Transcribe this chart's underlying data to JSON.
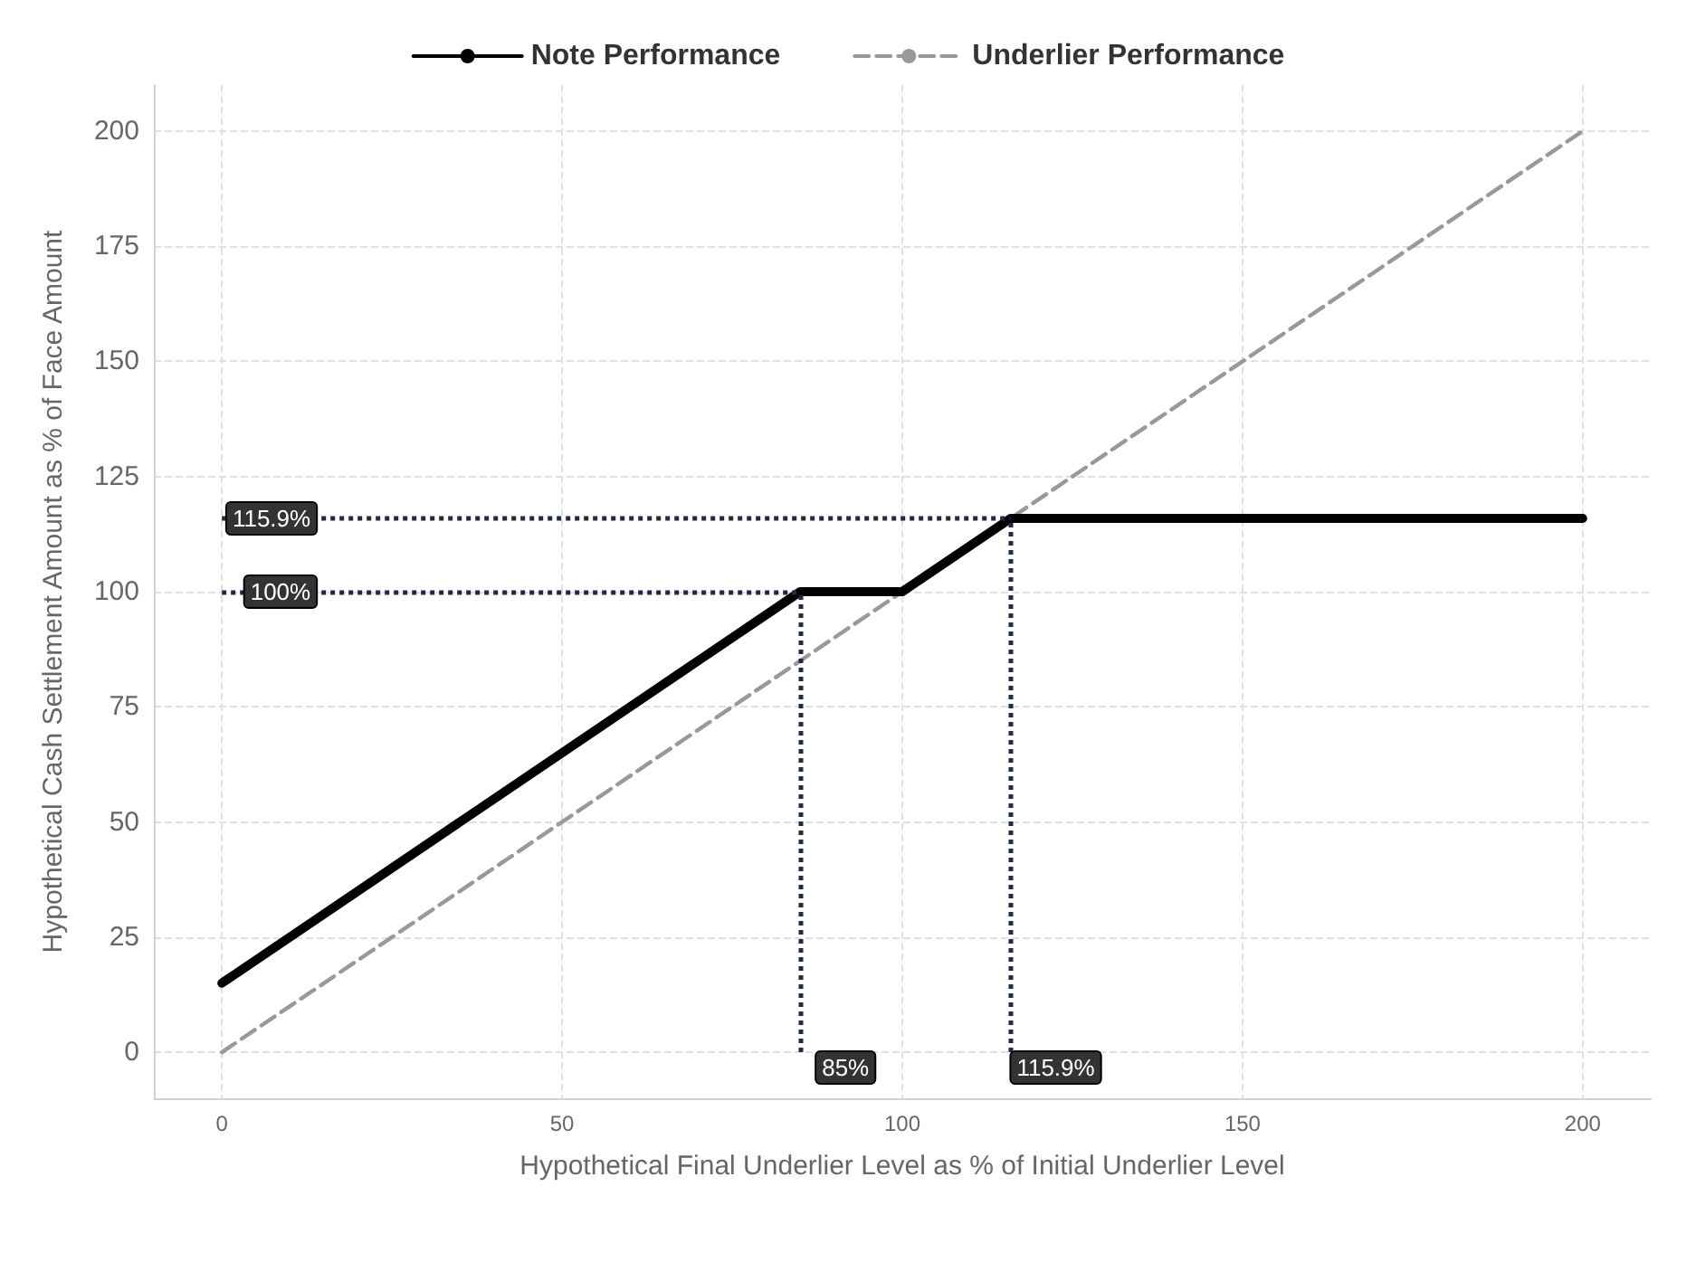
{
  "chart_data": {
    "type": "line",
    "xlabel": "Hypothetical Final Underlier Level as % of Initial Underlier Level",
    "ylabel": "Hypothetical Cash Settlement Amount as % of Face Amount",
    "series": [
      {
        "name": "Note Performance",
        "color": "#000000",
        "line_style": "solid",
        "x": [
          0,
          85,
          100,
          115.9,
          200
        ],
        "values": [
          15,
          100,
          100,
          115.9,
          115.9
        ]
      },
      {
        "name": "Underlier Performance",
        "color": "#999999",
        "line_style": "dashed",
        "x": [
          0,
          200
        ],
        "values": [
          0,
          200
        ]
      }
    ],
    "xlim": [
      -10,
      210
    ],
    "xticks": [
      0,
      50,
      100,
      150,
      200
    ],
    "ylim": [
      -10,
      210
    ],
    "yticks": [
      0,
      25,
      50,
      75,
      100,
      125,
      150,
      175,
      200
    ],
    "ref_lines": [
      {
        "axis": "y",
        "value": 115.9,
        "label": "115.9%",
        "color": "#1f2a44",
        "line_style": "dotted"
      },
      {
        "axis": "y",
        "value": 100,
        "label": "100%",
        "color": "#1f2a44",
        "line_style": "dotted"
      },
      {
        "axis": "x",
        "value": 85,
        "label": "85%",
        "color": "#1f2a44",
        "line_style": "dotted"
      },
      {
        "axis": "x",
        "value": 115.9,
        "label": "115.9%",
        "color": "#1f2a44",
        "line_style": "dotted"
      }
    ],
    "grid": true,
    "legend": "top",
    "marker": "none"
  }
}
